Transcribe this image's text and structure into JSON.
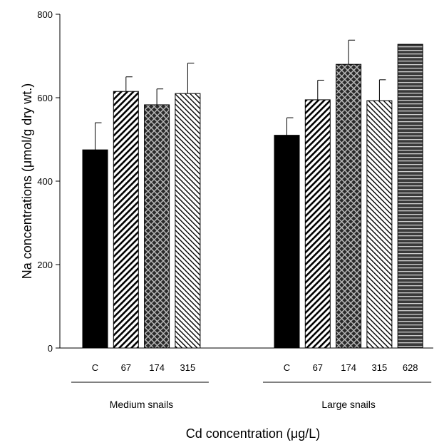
{
  "chart_data": {
    "type": "bar",
    "ylabel": "Na concentrations (μmol/g dry wt.)",
    "xlabel": "Cd concentration (μg/L)",
    "ylim": [
      0,
      800
    ],
    "yticks": [
      "0",
      "200",
      "400",
      "600",
      "800"
    ],
    "grid": false,
    "groups": [
      {
        "name": "Medium snails",
        "bars": [
          {
            "category": "C",
            "value": 475,
            "error": 65,
            "pattern": "solid-black"
          },
          {
            "category": "67",
            "value": 615,
            "error": 35,
            "pattern": "diagonal-right"
          },
          {
            "category": "174",
            "value": 583,
            "error": 38,
            "pattern": "crosshatch-dark"
          },
          {
            "category": "315",
            "value": 610,
            "error": 73,
            "pattern": "diagonal-left"
          }
        ]
      },
      {
        "name": "Large snails",
        "bars": [
          {
            "category": "C",
            "value": 510,
            "error": 42,
            "pattern": "solid-black"
          },
          {
            "category": "67",
            "value": 595,
            "error": 47,
            "pattern": "diagonal-right"
          },
          {
            "category": "174",
            "value": 680,
            "error": 58,
            "pattern": "crosshatch-dark"
          },
          {
            "category": "315",
            "value": 593,
            "error": 50,
            "pattern": "diagonal-left"
          },
          {
            "category": "628",
            "value": 728,
            "error": 0,
            "pattern": "horizontal-lines"
          }
        ]
      }
    ]
  }
}
